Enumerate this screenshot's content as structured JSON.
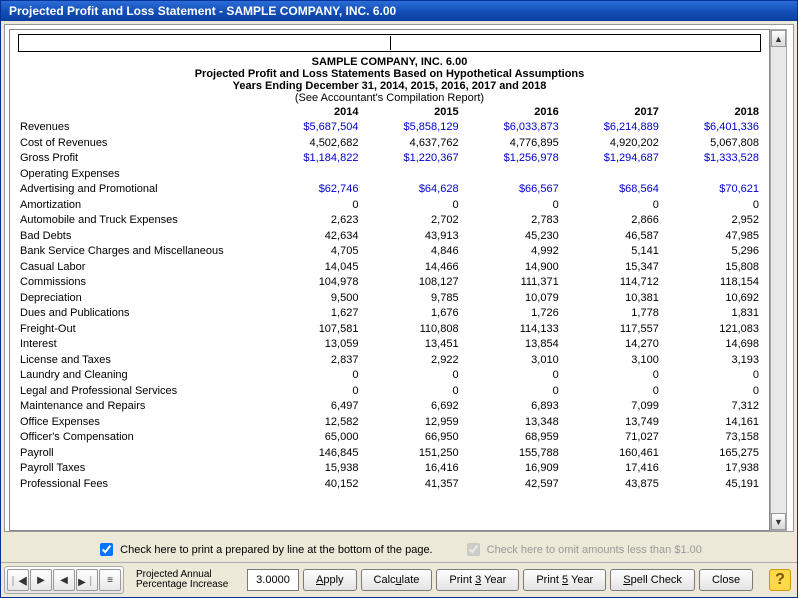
{
  "window": {
    "title": "Projected Profit and Loss Statement - SAMPLE COMPANY, INC. 6.00"
  },
  "report": {
    "header1": "SAMPLE COMPANY, INC. 6.00",
    "header2": "Projected Profit and Loss Statements Based on Hypothetical Assumptions",
    "header3": "Years Ending December 31, 2014, 2015, 2016, 2017 and 2018",
    "header4": "(See Accountant's Compilation Report)",
    "years": [
      "2014",
      "2015",
      "2016",
      "2017",
      "2018"
    ],
    "rows": [
      {
        "label": "Revenues",
        "values": [
          "$5,687,504",
          "$5,858,129",
          "$6,033,873",
          "$6,214,889",
          "$6,401,336"
        ],
        "blue": true
      },
      {
        "label": "Cost of Revenues",
        "values": [
          "4,502,682",
          "4,637,762",
          "4,776,895",
          "4,920,202",
          "5,067,808"
        ]
      },
      {
        "label": "Gross Profit",
        "values": [
          "$1,184,822",
          "$1,220,367",
          "$1,256,978",
          "$1,294,687",
          "$1,333,528"
        ],
        "blue": true
      },
      {
        "label": "Operating Expenses",
        "values": [
          "",
          "",
          "",
          "",
          ""
        ],
        "section": true
      },
      {
        "label": "Advertising and Promotional",
        "values": [
          "$62,746",
          "$64,628",
          "$66,567",
          "$68,564",
          "$70,621"
        ],
        "blue": true,
        "indent": true
      },
      {
        "label": "Amortization",
        "values": [
          "0",
          "0",
          "0",
          "0",
          "0"
        ],
        "indent": true
      },
      {
        "label": "Automobile and Truck Expenses",
        "values": [
          "2,623",
          "2,702",
          "2,783",
          "2,866",
          "2,952"
        ],
        "indent": true
      },
      {
        "label": "Bad Debts",
        "values": [
          "42,634",
          "43,913",
          "45,230",
          "46,587",
          "47,985"
        ],
        "indent": true
      },
      {
        "label": "Bank Service Charges and Miscellaneous",
        "values": [
          "4,705",
          "4,846",
          "4,992",
          "5,141",
          "5,296"
        ],
        "indent": true
      },
      {
        "label": "Casual Labor",
        "values": [
          "14,045",
          "14,466",
          "14,900",
          "15,347",
          "15,808"
        ],
        "indent": true
      },
      {
        "label": "Commissions",
        "values": [
          "104,978",
          "108,127",
          "111,371",
          "114,712",
          "118,154"
        ],
        "indent": true
      },
      {
        "label": "Depreciation",
        "values": [
          "9,500",
          "9,785",
          "10,079",
          "10,381",
          "10,692"
        ],
        "indent": true
      },
      {
        "label": "Dues and Publications",
        "values": [
          "1,627",
          "1,676",
          "1,726",
          "1,778",
          "1,831"
        ],
        "indent": true
      },
      {
        "label": "Freight-Out",
        "values": [
          "107,581",
          "110,808",
          "114,133",
          "117,557",
          "121,083"
        ],
        "indent": true
      },
      {
        "label": "Interest",
        "values": [
          "13,059",
          "13,451",
          "13,854",
          "14,270",
          "14,698"
        ],
        "indent": true
      },
      {
        "label": "License and Taxes",
        "values": [
          "2,837",
          "2,922",
          "3,010",
          "3,100",
          "3,193"
        ],
        "indent": true
      },
      {
        "label": "Laundry and Cleaning",
        "values": [
          "0",
          "0",
          "0",
          "0",
          "0"
        ],
        "indent": true
      },
      {
        "label": "Legal and Professional Services",
        "values": [
          "0",
          "0",
          "0",
          "0",
          "0"
        ],
        "indent": true
      },
      {
        "label": "Maintenance and Repairs",
        "values": [
          "6,497",
          "6,692",
          "6,893",
          "7,099",
          "7,312"
        ],
        "indent": true
      },
      {
        "label": "Office Expenses",
        "values": [
          "12,582",
          "12,959",
          "13,348",
          "13,749",
          "14,161"
        ],
        "indent": true
      },
      {
        "label": "Officer's Compensation",
        "values": [
          "65,000",
          "66,950",
          "68,959",
          "71,027",
          "73,158"
        ],
        "indent": true
      },
      {
        "label": "Payroll",
        "values": [
          "146,845",
          "151,250",
          "155,788",
          "160,461",
          "165,275"
        ],
        "indent": true
      },
      {
        "label": "Payroll Taxes",
        "values": [
          "15,938",
          "16,416",
          "16,909",
          "17,416",
          "17,938"
        ],
        "indent": true
      },
      {
        "label": "Professional Fees",
        "values": [
          "40,152",
          "41,357",
          "42,597",
          "43,875",
          "45,191"
        ],
        "indent": true
      }
    ]
  },
  "checkboxes": {
    "prepared_by": {
      "label": "Check here to print a prepared by line at the bottom of the page.",
      "checked": true
    },
    "omit_small": {
      "label": "Check here to omit amounts less than $1.00",
      "checked": true,
      "disabled": true
    }
  },
  "toolbar": {
    "pct_label": "Projected Annual Percentage Increase",
    "pct_value": "3.0000",
    "apply": "Apply",
    "calculate": "Calculate",
    "print3": "Print 3 Year",
    "print5": "Print 5 Year",
    "spellcheck": "Spell Check",
    "close": "Close"
  },
  "colors": {
    "titlebar_grad_top": "#2b6cd8",
    "titlebar_grad_bottom": "#0a3da0",
    "panel_bg": "#ece9d8",
    "blue_text": "#0000cc",
    "help_bg": "#ffd94a"
  }
}
